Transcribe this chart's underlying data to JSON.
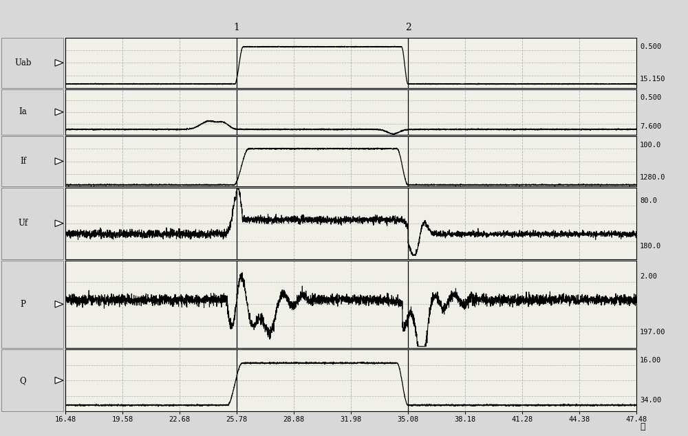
{
  "x_min": 16.48,
  "x_max": 47.48,
  "x_ticks": [
    16.48,
    19.58,
    22.68,
    25.78,
    28.88,
    31.98,
    35.08,
    38.18,
    41.28,
    44.38,
    47.48
  ],
  "x_label": "秒",
  "channels": [
    {
      "name": "Uab",
      "y_top": "0.500",
      "y_bot": "15.150"
    },
    {
      "name": "Ia",
      "y_top": "0.500",
      "y_bot": "7.600"
    },
    {
      "name": "If",
      "y_top": "100.0",
      "y_bot": "1280.0"
    },
    {
      "name": "Uf",
      "y_top": "80.0",
      "y_bot": "180.0"
    },
    {
      "name": "P",
      "y_top": "2.00",
      "y_bot": "197.00"
    },
    {
      "name": "Q",
      "y_top": "16.00",
      "y_bot": "34.00"
    }
  ],
  "bg_color": "#d8d8d8",
  "plot_bg_color": "#f0efe8",
  "grid_color": "#b0b0b0",
  "line_color": "#000000",
  "marker1_x": 25.78,
  "marker2_x": 35.08,
  "panel_heights": [
    1.1,
    1.0,
    1.1,
    1.55,
    1.9,
    1.35
  ]
}
